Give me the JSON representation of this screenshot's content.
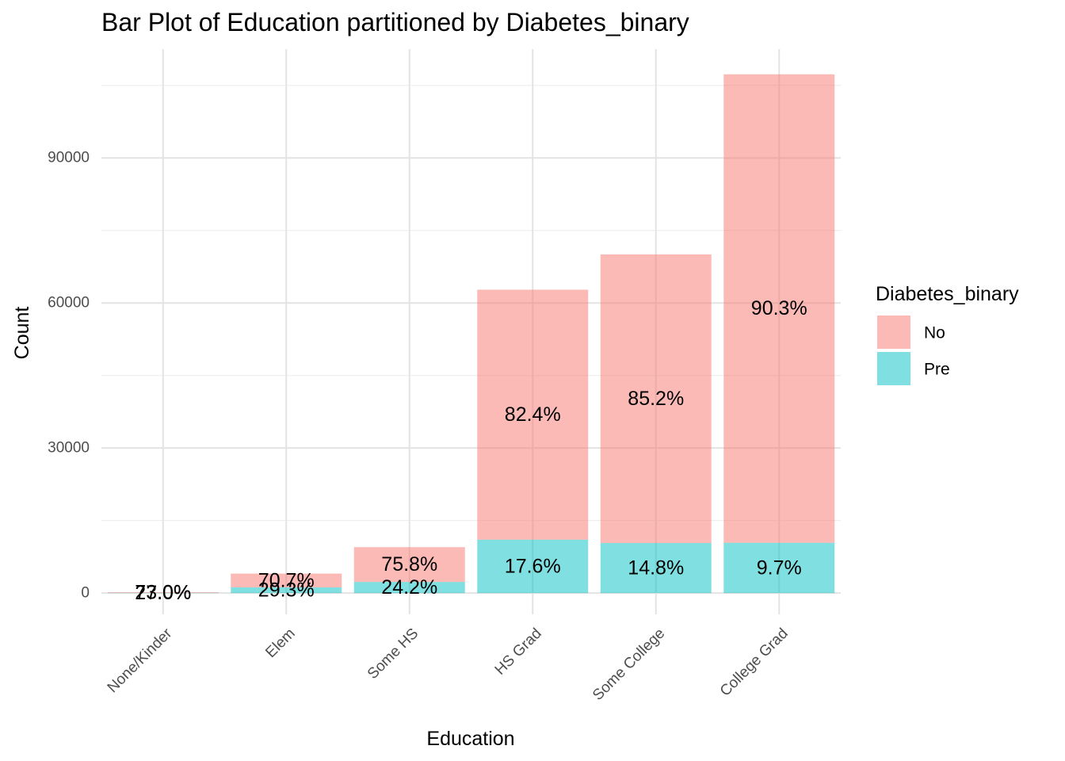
{
  "chart_data": {
    "type": "bar",
    "stacked": true,
    "title": "Bar Plot of Education partitioned by Diabetes_binary",
    "xlabel": "Education",
    "ylabel": "Count",
    "categories": [
      "None/Kinder",
      "Elem",
      "Some HS",
      "HS Grad",
      "Some College",
      "College Grad"
    ],
    "series": [
      {
        "name": "No",
        "color": "#F8766D",
        "values": [
          135,
          2850,
          7200,
          51700,
          59700,
          96900
        ],
        "labels": [
          "73.0%",
          "70.7%",
          "75.8%",
          "82.4%",
          "85.2%",
          "90.3%"
        ]
      },
      {
        "name": "Pre",
        "color": "#00BFC4",
        "values": [
          50,
          1180,
          2300,
          11050,
          10350,
          10400
        ],
        "labels": [
          "27.0%",
          "29.3%",
          "24.2%",
          "17.6%",
          "14.8%",
          "9.7%"
        ]
      }
    ],
    "yticks": [
      0,
      30000,
      60000,
      90000
    ],
    "ylim": [
      -4400,
      112500
    ],
    "grid": true,
    "legend": {
      "title": "Diabetes_binary",
      "position": "right"
    }
  }
}
